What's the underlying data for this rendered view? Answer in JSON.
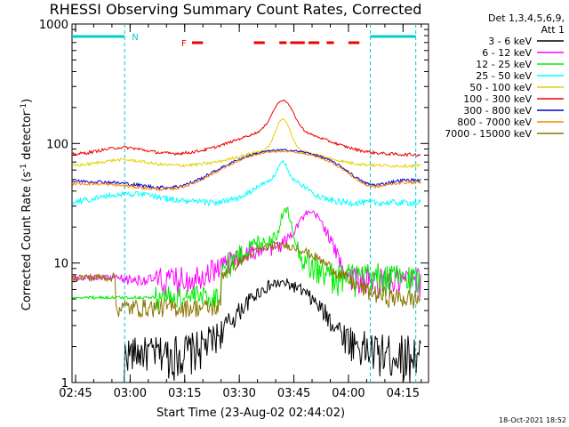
{
  "chart_data": {
    "type": "line",
    "title": "RHESSI Observing Summary Count Rates, Corrected",
    "xlabel": "Start Time (23-Aug-02 02:44:02)",
    "ylabel_main": "Corrected Count Rate (s",
    "ylabel_sup1": "-1",
    "ylabel_mid": " detector",
    "ylabel_sup2": "-1",
    "ylabel_end": ")",
    "xlim": [
      "02:44:02",
      "04:22"
    ],
    "ylim": [
      1,
      1000
    ],
    "y_scale": "log",
    "x_ticks": [
      "02:45",
      "03:00",
      "03:15",
      "03:30",
      "03:45",
      "04:00",
      "04:15"
    ],
    "y_ticks": [
      "1",
      "10",
      "100",
      "1000"
    ],
    "legend_header": [
      "Det 1,3,4,5,6,9,",
      "Att 1"
    ],
    "legend_position": "right",
    "series": [
      {
        "name": "3 - 6 keV",
        "color": "#000000"
      },
      {
        "name": "6 - 12 keV",
        "color": "#ff00ff"
      },
      {
        "name": "12 - 25 keV",
        "color": "#00ee00"
      },
      {
        "name": "25 - 50 keV",
        "color": "#00ffff"
      },
      {
        "name": "50 - 100 keV",
        "color": "#e6d000"
      },
      {
        "name": "100 - 300 keV",
        "color": "#ee0000"
      },
      {
        "name": "300 - 800 keV",
        "color": "#0000cc"
      },
      {
        "name": "800 - 7000 keV",
        "color": "#ff8000"
      },
      {
        "name": "7000 - 15000 keV",
        "color": "#8b7500"
      }
    ],
    "annotations": [
      {
        "label": "N",
        "color": "#00cccc"
      },
      {
        "label": "F",
        "color": "#ee0000"
      }
    ],
    "night_intervals": [
      [
        "02:44:02",
        "02:58:30"
      ],
      [
        "04:06:00",
        "04:18:30"
      ]
    ],
    "flare_intervals": [
      [
        "03:17",
        "03:20"
      ],
      [
        "03:34",
        "03:37"
      ],
      [
        "03:41",
        "03:43"
      ],
      [
        "03:44",
        "03:48"
      ],
      [
        "03:49",
        "03:52"
      ],
      [
        "03:54",
        "03:56"
      ],
      [
        "04:00",
        "04:03"
      ]
    ],
    "dashed_markers": [
      "02:58:30",
      "04:06:00",
      "04:18:30"
    ]
  },
  "timestamp": "18-Oct-2021 18:52"
}
